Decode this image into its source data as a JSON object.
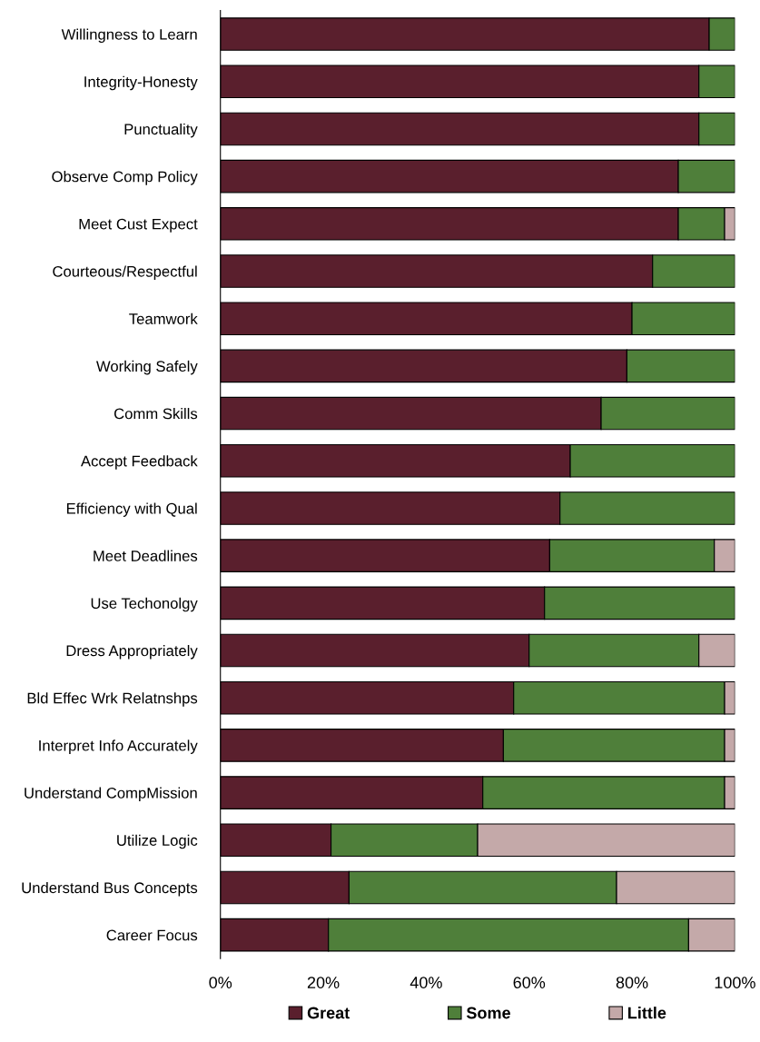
{
  "chart_data": {
    "type": "bar",
    "orientation": "horizontal",
    "stacked": true,
    "categories": [
      "Willingness to Learn",
      "Integrity-Honesty",
      "Punctuality",
      "Observe Comp Policy",
      "Meet Cust Expect",
      "Courteous/Respectful",
      "Teamwork",
      "Working Safely",
      "Comm Skills",
      "Accept Feedback",
      "Efficiency with Qual",
      "Meet Deadlines",
      "Use Techonolgy",
      "Dress Appropriately",
      "Bld Effec Wrk Relatnshps",
      "Interpret Info Accurately",
      "Understand CompMission",
      "Utilize Logic",
      "Understand Bus Concepts",
      "Career Focus"
    ],
    "series": [
      {
        "name": "Great",
        "color": "#5a1f2d",
        "values": [
          95,
          93,
          93,
          89,
          89,
          84,
          80,
          79,
          74,
          68,
          66,
          64,
          63,
          60,
          57,
          55,
          51,
          21.5,
          25,
          21
        ]
      },
      {
        "name": "Some",
        "color": "#4f7f3a",
        "values": [
          5,
          7,
          7,
          11,
          9,
          16,
          20,
          21,
          26,
          32,
          34,
          32,
          37,
          33,
          41,
          43,
          47,
          28.5,
          52,
          70
        ]
      },
      {
        "name": "Little",
        "color": "#c4a9a9",
        "values": [
          0,
          0,
          0,
          0,
          2,
          0,
          0,
          0,
          0,
          0,
          0,
          4,
          0,
          7,
          2,
          2,
          2,
          50,
          23,
          9
        ]
      }
    ],
    "xlim": [
      0,
      100
    ],
    "xticks": [
      {
        "value": 0,
        "label": "0%"
      },
      {
        "value": 20,
        "label": "20%"
      },
      {
        "value": 40,
        "label": "40%"
      },
      {
        "value": 60,
        "label": "60%"
      },
      {
        "value": 80,
        "label": "80%"
      },
      {
        "value": 100,
        "label": "100%"
      }
    ],
    "legend": "bottom",
    "grid": false
  }
}
